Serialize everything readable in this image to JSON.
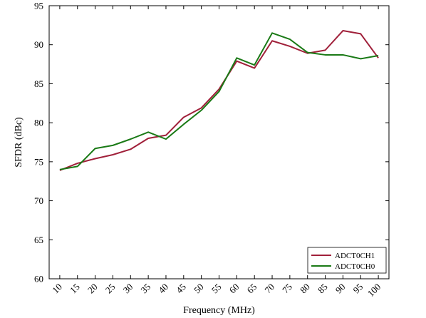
{
  "chart_data": {
    "type": "line",
    "xlabel": "Frequency (MHz)",
    "ylabel": "SFDR (dBc)",
    "ylim": [
      60,
      95
    ],
    "yticks": [
      60,
      65,
      70,
      75,
      80,
      85,
      90,
      95
    ],
    "x": [
      10,
      15,
      20,
      25,
      30,
      35,
      40,
      45,
      50,
      55,
      60,
      65,
      70,
      75,
      80,
      85,
      90,
      95,
      100
    ],
    "x_tick_labels": [
      "10",
      "15",
      "20",
      "25",
      "30",
      "35",
      "40",
      "45",
      "50",
      "55",
      "60",
      "65",
      "70",
      "75",
      "80",
      "85",
      "90",
      "95",
      "100"
    ],
    "x_tick_rotation": "-45 degrees",
    "grid": false,
    "legend_position": "bottom-right",
    "series": [
      {
        "name": "ADCT0CH1",
        "color": "#a0203a",
        "values": [
          73.9,
          74.8,
          75.4,
          75.9,
          76.6,
          78.0,
          78.4,
          80.7,
          81.9,
          84.3,
          87.9,
          87.0,
          90.5,
          89.8,
          88.9,
          89.3,
          91.8,
          91.4,
          88.3
        ]
      },
      {
        "name": "ADCT0CH0",
        "color": "#1a7a16",
        "values": [
          74.0,
          74.4,
          76.7,
          77.1,
          77.9,
          78.8,
          77.9,
          79.8,
          81.6,
          84.0,
          88.3,
          87.4,
          91.5,
          90.7,
          89.0,
          88.7,
          88.7,
          88.2,
          88.6
        ]
      }
    ]
  }
}
